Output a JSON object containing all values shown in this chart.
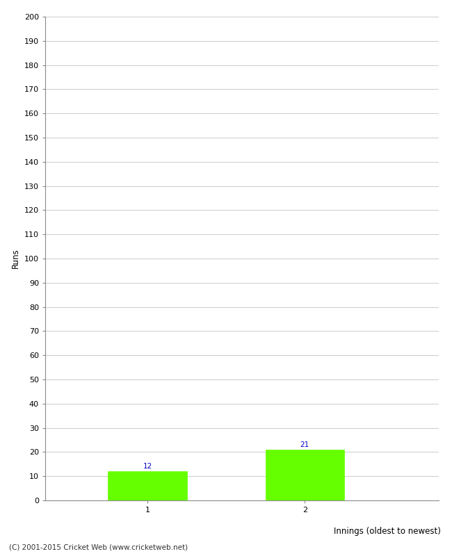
{
  "categories": [
    "1",
    "2"
  ],
  "values": [
    12,
    21
  ],
  "bar_color": "#66ff00",
  "bar_edge_color": "#66ff00",
  "ylabel": "Runs",
  "xlabel": "Innings (oldest to newest)",
  "ylim": [
    0,
    200
  ],
  "ytick_step": 10,
  "label_color": "#0000cc",
  "label_fontsize": 7.5,
  "axis_fontsize": 8.5,
  "tick_fontsize": 8,
  "footer_text": "(C) 2001-2015 Cricket Web (www.cricketweb.net)",
  "background_color": "#ffffff",
  "grid_color": "#cccccc",
  "spine_color": "#888888",
  "x_positions": [
    1,
    2
  ],
  "bar_width": 0.5,
  "xlim": [
    0.35,
    2.85
  ]
}
